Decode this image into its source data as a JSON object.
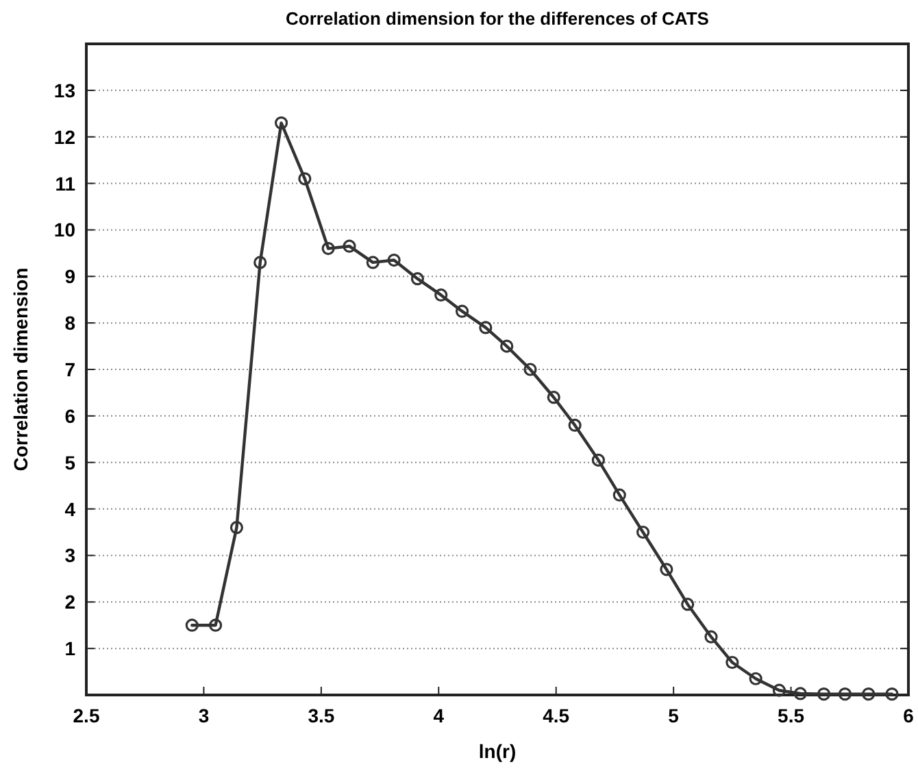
{
  "chart_data": {
    "type": "line",
    "title": "Correlation dimension for the differences of CATS",
    "xlabel": "ln(r)",
    "ylabel": "Correlation dimension",
    "x": [
      2.95,
      3.05,
      3.14,
      3.24,
      3.33,
      3.43,
      3.53,
      3.62,
      3.72,
      3.81,
      3.91,
      4.01,
      4.1,
      4.2,
      4.29,
      4.39,
      4.49,
      4.58,
      4.68,
      4.77,
      4.87,
      4.97,
      5.06,
      5.16,
      5.25,
      5.35,
      5.45,
      5.54,
      5.64,
      5.73,
      5.83,
      5.93
    ],
    "series": [
      {
        "color": "#333333",
        "values": [
          1.5,
          1.5,
          3.6,
          9.3,
          12.3,
          11.1,
          9.6,
          9.65,
          9.3,
          9.35,
          8.95,
          8.6,
          8.25,
          7.9,
          7.5,
          7.0,
          6.4,
          5.8,
          5.05,
          4.3,
          3.5,
          2.7,
          1.95,
          1.25,
          0.7,
          0.35,
          0.1,
          0.03,
          0.02,
          0.02,
          0.02,
          0.02
        ]
      }
    ],
    "xlim": [
      2.5,
      6
    ],
    "xticks": [
      2.5,
      3,
      3.5,
      4,
      4.5,
      5,
      5.5,
      6
    ],
    "ylim": [
      0,
      14
    ],
    "yticks": [
      1,
      2,
      3,
      4,
      5,
      6,
      7,
      8,
      9,
      10,
      11,
      12,
      13
    ],
    "grid": "y",
    "marker": "circle",
    "line_style": "solid"
  }
}
